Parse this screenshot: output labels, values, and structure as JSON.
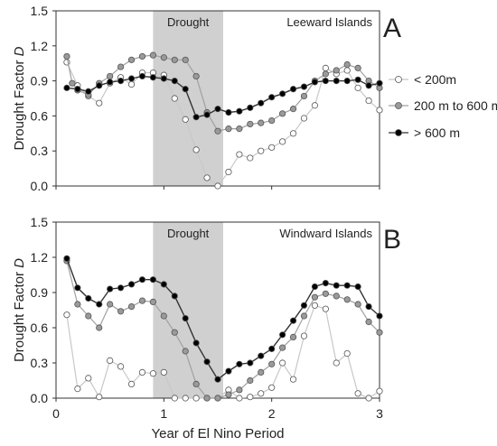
{
  "chart_data": [
    {
      "panel": "A",
      "type": "line",
      "panel_label": "A",
      "region_label": "Leeward Islands",
      "shaded_label": "Drought",
      "shaded_range": [
        0.9,
        1.55
      ],
      "ylabel": "Drought Factor D",
      "xlabel": "",
      "ylim": [
        0,
        1.5
      ],
      "xlim": [
        0,
        3
      ],
      "yticks": [
        "0.0",
        "0.3",
        "0.6",
        "0.9",
        "1.2",
        "1.5"
      ],
      "xticks": [],
      "series": [
        {
          "name": "< 200m",
          "color": "#c8c8c8",
          "marker_fill": "#ffffff",
          "x": [
            0.1,
            0.2,
            0.3,
            0.4,
            0.5,
            0.6,
            0.7,
            0.8,
            0.9,
            1.0,
            1.1,
            1.2,
            1.3,
            1.4,
            1.5,
            1.6,
            1.7,
            1.8,
            1.9,
            2.0,
            2.1,
            2.2,
            2.3,
            2.4,
            2.5,
            2.6,
            2.7,
            2.8,
            2.9,
            3.0
          ],
          "y": [
            1.06,
            0.86,
            0.77,
            0.71,
            0.88,
            0.93,
            0.87,
            0.97,
            0.97,
            0.95,
            0.75,
            0.57,
            0.31,
            0.07,
            0.0,
            0.12,
            0.27,
            0.24,
            0.3,
            0.33,
            0.38,
            0.45,
            0.58,
            0.69,
            1.01,
            0.96,
            0.99,
            0.84,
            0.73,
            0.65
          ]
        },
        {
          "name": "200 m to 600 m",
          "color": "#a0a0a0",
          "marker_fill": "#9a9a9a",
          "x": [
            0.1,
            0.15,
            0.2,
            0.3,
            0.4,
            0.5,
            0.6,
            0.7,
            0.8,
            0.9,
            1.0,
            1.1,
            1.2,
            1.3,
            1.4,
            1.5,
            1.6,
            1.7,
            1.8,
            1.9,
            2.0,
            2.1,
            2.2,
            2.3,
            2.4,
            2.5,
            2.6,
            2.7,
            2.8,
            2.9,
            3.0
          ],
          "y": [
            1.11,
            0.88,
            0.82,
            0.78,
            0.88,
            0.94,
            1.02,
            1.08,
            1.11,
            1.12,
            1.1,
            1.08,
            1.08,
            0.94,
            0.63,
            0.47,
            0.49,
            0.49,
            0.53,
            0.54,
            0.56,
            0.62,
            0.66,
            0.77,
            0.9,
            0.96,
            0.99,
            1.04,
            1.01,
            0.9,
            0.84
          ]
        },
        {
          "name": "> 600 m",
          "color": "#333333",
          "marker_fill": "#000000",
          "x": [
            0.1,
            0.2,
            0.3,
            0.4,
            0.5,
            0.6,
            0.7,
            0.8,
            0.9,
            1.0,
            1.1,
            1.2,
            1.3,
            1.4,
            1.5,
            1.6,
            1.7,
            1.8,
            1.9,
            2.0,
            2.1,
            2.2,
            2.3,
            2.4,
            2.5,
            2.6,
            2.7,
            2.8,
            2.9,
            3.0
          ],
          "y": [
            0.84,
            0.83,
            0.81,
            0.86,
            0.89,
            0.9,
            0.92,
            0.94,
            0.93,
            0.92,
            0.9,
            0.83,
            0.59,
            0.61,
            0.66,
            0.63,
            0.64,
            0.67,
            0.71,
            0.76,
            0.79,
            0.83,
            0.85,
            0.89,
            0.9,
            0.9,
            0.9,
            0.91,
            0.86,
            0.88
          ]
        }
      ]
    },
    {
      "panel": "B",
      "type": "line",
      "panel_label": "B",
      "region_label": "Windward Islands",
      "shaded_label": "Drought",
      "shaded_range": [
        0.9,
        1.55
      ],
      "ylabel": "Drought Factor D",
      "xlabel": "Year of El Nino Period",
      "ylim": [
        0,
        1.5
      ],
      "xlim": [
        0,
        3
      ],
      "yticks": [
        "0.0",
        "0.3",
        "0.6",
        "0.9",
        "1.2",
        "1.5"
      ],
      "xticks": [
        "0",
        "1",
        "2",
        "3"
      ],
      "series": [
        {
          "name": "< 200m",
          "color": "#c8c8c8",
          "marker_fill": "#ffffff",
          "x": [
            0.1,
            0.2,
            0.3,
            0.4,
            0.5,
            0.6,
            0.7,
            0.8,
            0.9,
            1.0,
            1.1,
            1.2,
            1.3,
            1.4,
            1.5,
            1.6,
            1.7,
            1.8,
            1.9,
            2.0,
            2.1,
            2.2,
            2.3,
            2.4,
            2.5,
            2.6,
            2.7,
            2.8,
            2.9,
            3.0
          ],
          "y": [
            0.71,
            0.08,
            0.17,
            0.01,
            0.32,
            0.27,
            0.12,
            0.22,
            0.21,
            0.22,
            0.0,
            0.0,
            0.0,
            0.0,
            0.0,
            0.07,
            0.0,
            0.01,
            0.04,
            0.09,
            0.3,
            0.16,
            0.53,
            0.79,
            0.76,
            0.3,
            0.38,
            0.04,
            0.0,
            0.06
          ]
        },
        {
          "name": "200 m to 600 m",
          "color": "#a0a0a0",
          "marker_fill": "#9a9a9a",
          "x": [
            0.1,
            0.2,
            0.3,
            0.4,
            0.5,
            0.6,
            0.7,
            0.8,
            0.9,
            1.0,
            1.1,
            1.2,
            1.3,
            1.4,
            1.5,
            1.6,
            1.7,
            1.8,
            1.9,
            2.0,
            2.1,
            2.2,
            2.3,
            2.4,
            2.5,
            2.6,
            2.7,
            2.8,
            2.9,
            3.0
          ],
          "y": [
            1.17,
            0.8,
            0.7,
            0.6,
            0.8,
            0.74,
            0.78,
            0.83,
            0.82,
            0.7,
            0.56,
            0.4,
            0.12,
            0.0,
            0.0,
            0.03,
            0.07,
            0.15,
            0.22,
            0.29,
            0.43,
            0.52,
            0.7,
            0.86,
            0.89,
            0.87,
            0.84,
            0.8,
            0.65,
            0.56
          ]
        },
        {
          "name": "> 600 m",
          "color": "#333333",
          "marker_fill": "#000000",
          "x": [
            0.1,
            0.2,
            0.3,
            0.4,
            0.5,
            0.6,
            0.7,
            0.8,
            0.9,
            1.0,
            1.1,
            1.2,
            1.3,
            1.4,
            1.5,
            1.6,
            1.7,
            1.8,
            1.9,
            2.0,
            2.1,
            2.2,
            2.3,
            2.4,
            2.5,
            2.6,
            2.7,
            2.8,
            2.9,
            3.0
          ],
          "y": [
            1.19,
            0.94,
            0.85,
            0.8,
            0.93,
            0.94,
            0.97,
            1.01,
            1.01,
            0.97,
            0.87,
            0.68,
            0.47,
            0.31,
            0.16,
            0.23,
            0.29,
            0.3,
            0.36,
            0.42,
            0.54,
            0.66,
            0.79,
            0.95,
            0.98,
            0.96,
            0.96,
            0.95,
            0.78,
            0.7
          ]
        }
      ]
    }
  ],
  "legend": [
    {
      "label": "< 200m",
      "color": "#c8c8c8",
      "marker_fill": "#ffffff"
    },
    {
      "label": "200 m to 600 m",
      "color": "#a0a0a0",
      "marker_fill": "#9a9a9a"
    },
    {
      "label": "> 600 m",
      "color": "#333333",
      "marker_fill": "#000000"
    }
  ],
  "colors": {
    "drought_band": "#d0d0d0",
    "frame": "#333333"
  }
}
